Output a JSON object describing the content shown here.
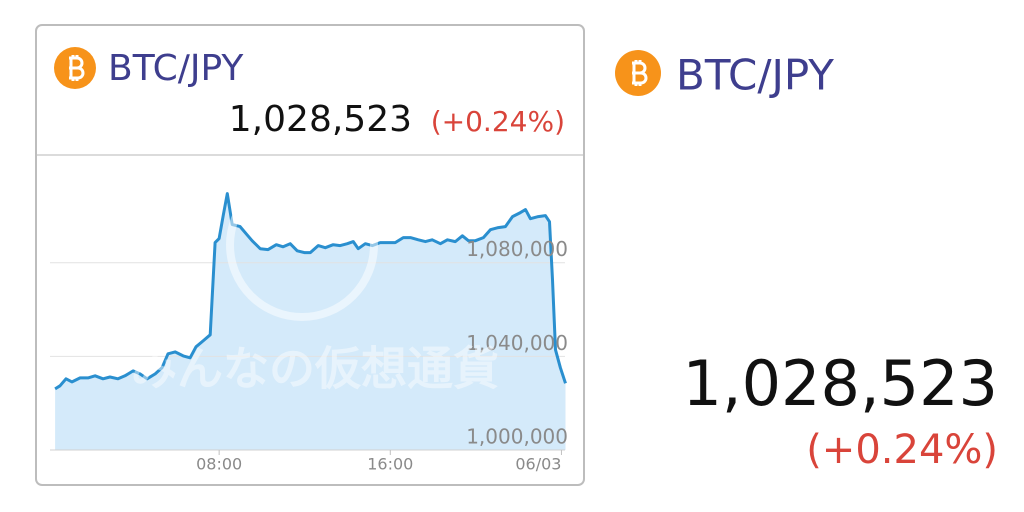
{
  "card": {
    "pair": "BTC/JPY",
    "price": "1,028,523",
    "change": "(+0.24%)",
    "watermark": "みんなの仮想通貨"
  },
  "summary": {
    "pair": "BTC/JPY",
    "price": "1,028,523",
    "change": "(+0.24%)"
  },
  "chart_data": {
    "type": "area",
    "color": "#2a8fcf",
    "fill": "#d4eafa",
    "grid": true,
    "x": [
      0.33,
      0.56,
      0.84,
      1.12,
      1.5,
      1.87,
      2.2,
      2.57,
      2.9,
      3.27,
      3.6,
      3.98,
      4.3,
      4.63,
      5.01,
      5.33,
      5.61,
      5.94,
      6.32,
      6.64,
      6.92,
      7.25,
      7.58,
      7.81,
      8,
      8.19,
      8.38,
      8.61,
      8.98,
      9.26,
      9.54,
      9.92,
      10.29,
      10.67,
      10.99,
      11.32,
      11.65,
      11.98,
      12.26,
      12.63,
      12.96,
      13.33,
      13.66,
      13.99,
      14.27,
      14.5,
      14.83,
      15.16,
      15.53,
      15.91,
      16.23,
      16.61,
      16.94,
      17.31,
      17.64,
      17.96,
      18.34,
      18.67,
      19.04,
      19.37,
      19.65,
      19.98,
      20.35,
      20.68,
      21.05,
      21.38,
      21.71,
      22.08,
      22.32,
      22.55,
      22.92,
      23.25,
      23.44,
      23.58,
      23.72,
      23.95,
      24.19
    ],
    "values": [
      1026100,
      1027400,
      1030400,
      1029100,
      1030800,
      1030800,
      1031700,
      1030400,
      1031200,
      1030400,
      1031700,
      1033800,
      1032500,
      1030400,
      1032500,
      1035100,
      1041100,
      1041900,
      1040200,
      1039400,
      1044100,
      1046600,
      1049200,
      1088600,
      1090300,
      1100100,
      1109500,
      1096300,
      1095400,
      1092400,
      1089400,
      1086000,
      1085600,
      1087700,
      1086800,
      1088100,
      1085100,
      1084300,
      1084300,
      1087300,
      1086400,
      1087700,
      1087300,
      1088100,
      1089000,
      1086000,
      1088100,
      1087300,
      1088600,
      1088600,
      1088600,
      1090700,
      1090700,
      1089800,
      1089000,
      1089800,
      1088100,
      1089800,
      1089000,
      1091500,
      1089400,
      1089400,
      1090700,
      1094100,
      1095000,
      1095400,
      1099700,
      1101400,
      1102700,
      1098800,
      1099700,
      1100100,
      1097500,
      1072700,
      1042800,
      1035100,
      1028500
    ],
    "xlim": [
      0,
      24.4
    ],
    "ylim": [
      1000000,
      1126000
    ],
    "xticks": [
      {
        "value": 8,
        "label": "08:00"
      },
      {
        "value": 16,
        "label": "16:00"
      },
      {
        "value": 24,
        "label": "06/03"
      }
    ],
    "yticks": [
      {
        "value": 1000000,
        "label": "1,000,000"
      },
      {
        "value": 1040000,
        "label": "1,040,000"
      },
      {
        "value": 1080000,
        "label": "1,080,000"
      }
    ]
  }
}
